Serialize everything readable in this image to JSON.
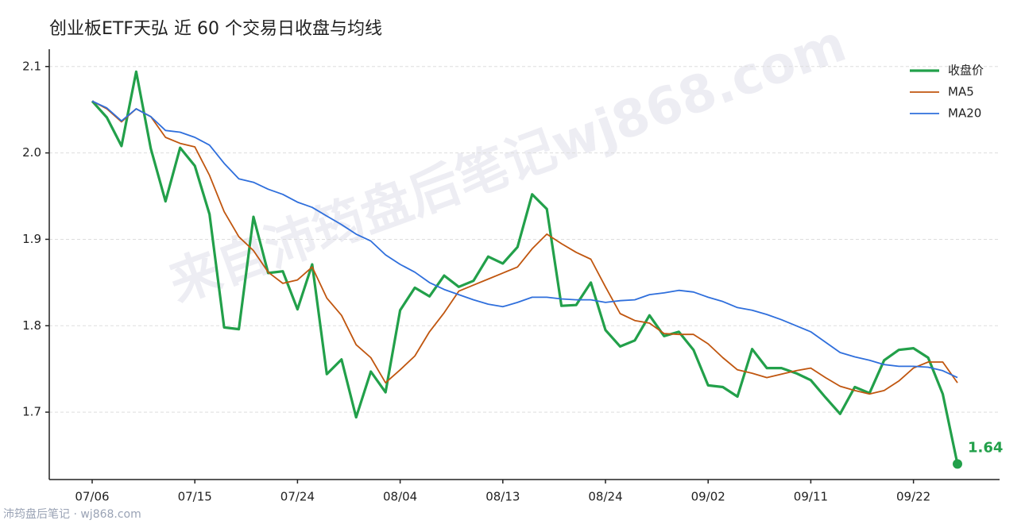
{
  "chart_data": {
    "type": "line",
    "title": "创业板ETF天弘 近 60 个交易日收盘与均线",
    "watermark": "来自沛筠盘后笔记wj868.com",
    "footer": "沛筠盘后笔记 · wj868.com",
    "categories": [
      "07/06",
      null,
      null,
      null,
      null,
      null,
      null,
      "07/15",
      null,
      null,
      null,
      null,
      null,
      null,
      "07/24",
      null,
      null,
      null,
      null,
      null,
      null,
      "08/04",
      null,
      null,
      null,
      null,
      null,
      null,
      "08/13",
      null,
      null,
      null,
      null,
      null,
      null,
      "08/24",
      null,
      null,
      null,
      null,
      null,
      null,
      "09/02",
      null,
      null,
      null,
      null,
      null,
      null,
      "09/11",
      null,
      null,
      null,
      null,
      null,
      null,
      "09/22",
      null,
      null,
      null
    ],
    "ylim": [
      1.622,
      2.12
    ],
    "yticks": [
      1.7,
      1.8,
      1.9,
      {
        "value": 2,
        "label": "2.0"
      },
      2.1
    ],
    "grid": true,
    "legend": "upper right",
    "series": [
      {
        "name": "收盘价",
        "color": "#22a04a",
        "width": 3.2,
        "last_label": true,
        "values": [
          2.06,
          2.041,
          2.008,
          2.094,
          2.005,
          1.944,
          2.006,
          1.985,
          1.929,
          1.798,
          1.796,
          1.926,
          1.861,
          1.863,
          1.819,
          1.871,
          1.744,
          1.761,
          1.694,
          1.747,
          1.723,
          1.818,
          1.844,
          1.834,
          1.858,
          1.845,
          1.852,
          1.88,
          1.872,
          1.891,
          1.952,
          1.935,
          1.823,
          1.824,
          1.85,
          1.795,
          1.776,
          1.783,
          1.812,
          1.788,
          1.793,
          1.772,
          1.731,
          1.729,
          1.718,
          1.773,
          1.751,
          1.751,
          1.745,
          1.737,
          1.717,
          1.698,
          1.729,
          1.722,
          1.76,
          1.772,
          1.774,
          1.763,
          1.721,
          1.64
        ]
      },
      {
        "name": "MA5",
        "color": "#c0560f",
        "width": 1.8,
        "values": [
          2.06,
          2.051,
          2.036,
          2.051,
          2.042,
          2.018,
          2.011,
          2.007,
          1.974,
          1.932,
          1.903,
          1.887,
          1.862,
          1.849,
          1.853,
          1.868,
          1.832,
          1.812,
          1.778,
          1.763,
          1.734,
          1.749,
          1.765,
          1.793,
          1.815,
          1.84,
          1.847,
          1.854,
          1.861,
          1.868,
          1.889,
          1.906,
          1.895,
          1.885,
          1.877,
          1.845,
          1.814,
          1.806,
          1.803,
          1.791,
          1.79,
          1.79,
          1.779,
          1.763,
          1.749,
          1.745,
          1.74,
          1.744,
          1.748,
          1.751,
          1.74,
          1.73,
          1.725,
          1.721,
          1.725,
          1.736,
          1.751,
          1.758,
          1.758,
          1.734
        ]
      },
      {
        "name": "MA20",
        "color": "#2f6fdc",
        "width": 1.8,
        "values": [
          2.06,
          2.052,
          2.037,
          2.051,
          2.042,
          2.026,
          2.024,
          2.018,
          2.009,
          1.988,
          1.97,
          1.966,
          1.958,
          1.952,
          1.943,
          1.937,
          1.927,
          1.917,
          1.906,
          1.898,
          1.882,
          1.871,
          1.862,
          1.85,
          1.842,
          1.836,
          1.83,
          1.825,
          1.822,
          1.827,
          1.833,
          1.833,
          1.831,
          1.83,
          1.83,
          1.827,
          1.829,
          1.83,
          1.836,
          1.838,
          1.841,
          1.839,
          1.833,
          1.828,
          1.821,
          1.818,
          1.813,
          1.807,
          1.8,
          1.793,
          1.781,
          1.769,
          1.764,
          1.76,
          1.755,
          1.753,
          1.753,
          1.752,
          1.748,
          1.74
        ]
      }
    ]
  }
}
